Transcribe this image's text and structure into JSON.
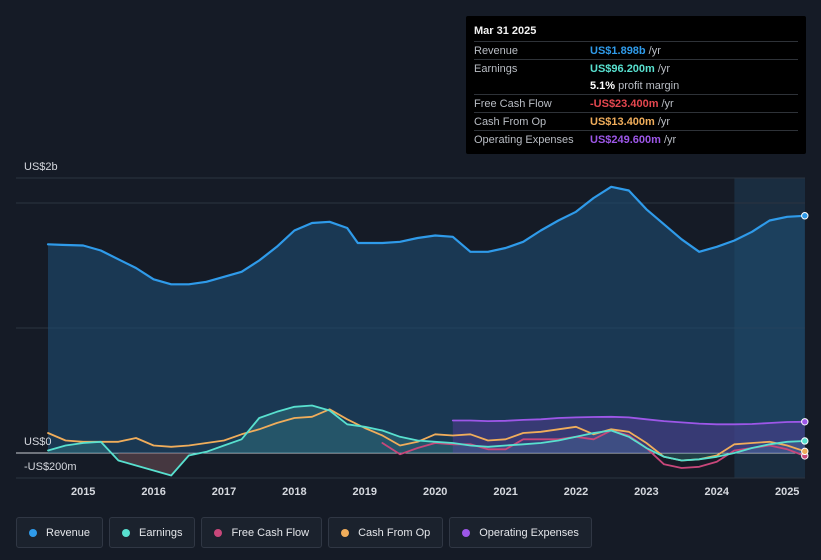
{
  "tooltip": {
    "date": "Mar 31 2025",
    "rows": [
      {
        "label": "Revenue",
        "value": "US$1.898b",
        "unit": "/yr",
        "color": "#2f9bea"
      },
      {
        "label": "Earnings",
        "value": "US$96.200m",
        "unit": "/yr",
        "color": "#58e0cf"
      },
      {
        "label": "",
        "value": "5.1%",
        "unit": "profit margin",
        "color": "#ffffff"
      },
      {
        "label": "Free Cash Flow",
        "value": "-US$23.400m",
        "unit": "/yr",
        "color": "#e5474f"
      },
      {
        "label": "Cash From Op",
        "value": "US$13.400m",
        "unit": "/yr",
        "color": "#f0ad5b"
      },
      {
        "label": "Operating Expenses",
        "value": "US$249.600m",
        "unit": "/yr",
        "color": "#9d57e8"
      }
    ]
  },
  "legend": [
    {
      "label": "Revenue",
      "color": "#2f9bea"
    },
    {
      "label": "Earnings",
      "color": "#58e0cf"
    },
    {
      "label": "Free Cash Flow",
      "color": "#c8477a"
    },
    {
      "label": "Cash From Op",
      "color": "#f0ad5b"
    },
    {
      "label": "Operating Expenses",
      "color": "#9d57e8"
    }
  ],
  "chart_data": {
    "type": "area",
    "title": "",
    "xlabel": "",
    "ylabel": "",
    "y_axis_labels": [
      "US$2b",
      "US$0",
      "-US$200m"
    ],
    "x_ticks": [
      "2015",
      "2016",
      "2017",
      "2018",
      "2019",
      "2020",
      "2021",
      "2022",
      "2023",
      "2024",
      "2025"
    ],
    "xlim": [
      2014.5,
      2025.25
    ],
    "ylim": [
      -200,
      2200
    ],
    "y_gridlines": [
      -200,
      0,
      1000,
      2000
    ],
    "forecast_shading_start": 2024.25,
    "units": "US$ millions",
    "series": [
      {
        "name": "Revenue",
        "color": "#2f9bea",
        "fill": true,
        "points": [
          [
            2014.5,
            1670
          ],
          [
            2014.7,
            1665
          ],
          [
            2015.0,
            1660
          ],
          [
            2015.25,
            1620
          ],
          [
            2015.5,
            1550
          ],
          [
            2015.75,
            1480
          ],
          [
            2016.0,
            1390
          ],
          [
            2016.25,
            1350
          ],
          [
            2016.5,
            1350
          ],
          [
            2016.75,
            1370
          ],
          [
            2017.0,
            1410
          ],
          [
            2017.25,
            1450
          ],
          [
            2017.5,
            1540
          ],
          [
            2017.75,
            1650
          ],
          [
            2018.0,
            1780
          ],
          [
            2018.25,
            1840
          ],
          [
            2018.5,
            1850
          ],
          [
            2018.75,
            1800
          ],
          [
            2018.9,
            1680
          ],
          [
            2019.25,
            1680
          ],
          [
            2019.5,
            1690
          ],
          [
            2019.75,
            1720
          ],
          [
            2020.0,
            1740
          ],
          [
            2020.25,
            1730
          ],
          [
            2020.5,
            1610
          ],
          [
            2020.75,
            1610
          ],
          [
            2021.0,
            1640
          ],
          [
            2021.25,
            1690
          ],
          [
            2021.5,
            1780
          ],
          [
            2021.75,
            1860
          ],
          [
            2022.0,
            1930
          ],
          [
            2022.25,
            2040
          ],
          [
            2022.5,
            2130
          ],
          [
            2022.75,
            2100
          ],
          [
            2023.0,
            1950
          ],
          [
            2023.25,
            1830
          ],
          [
            2023.5,
            1710
          ],
          [
            2023.75,
            1610
          ],
          [
            2024.0,
            1650
          ],
          [
            2024.25,
            1700
          ],
          [
            2024.5,
            1770
          ],
          [
            2024.75,
            1860
          ],
          [
            2025.0,
            1890
          ],
          [
            2025.25,
            1898
          ]
        ]
      },
      {
        "name": "Earnings",
        "color": "#58e0cf",
        "fill": true,
        "points": [
          [
            2014.5,
            20
          ],
          [
            2014.75,
            60
          ],
          [
            2015.0,
            80
          ],
          [
            2015.25,
            90
          ],
          [
            2015.5,
            -60
          ],
          [
            2015.75,
            -100
          ],
          [
            2016.0,
            -140
          ],
          [
            2016.25,
            -180
          ],
          [
            2016.5,
            -20
          ],
          [
            2016.75,
            10
          ],
          [
            2017.0,
            60
          ],
          [
            2017.25,
            110
          ],
          [
            2017.5,
            280
          ],
          [
            2017.75,
            330
          ],
          [
            2018.0,
            370
          ],
          [
            2018.25,
            380
          ],
          [
            2018.5,
            340
          ],
          [
            2018.75,
            230
          ],
          [
            2019.0,
            210
          ],
          [
            2019.25,
            180
          ],
          [
            2019.5,
            130
          ],
          [
            2019.75,
            100
          ],
          [
            2020.0,
            90
          ],
          [
            2020.25,
            80
          ],
          [
            2020.5,
            60
          ],
          [
            2020.75,
            50
          ],
          [
            2021.0,
            60
          ],
          [
            2021.25,
            70
          ],
          [
            2021.5,
            80
          ],
          [
            2021.75,
            100
          ],
          [
            2022.0,
            130
          ],
          [
            2022.25,
            160
          ],
          [
            2022.5,
            180
          ],
          [
            2022.75,
            130
          ],
          [
            2023.0,
            40
          ],
          [
            2023.25,
            -30
          ],
          [
            2023.5,
            -60
          ],
          [
            2023.75,
            -50
          ],
          [
            2024.0,
            -30
          ],
          [
            2024.25,
            0
          ],
          [
            2024.5,
            40
          ],
          [
            2024.75,
            70
          ],
          [
            2025.0,
            90
          ],
          [
            2025.25,
            96.2
          ]
        ]
      },
      {
        "name": "Free Cash Flow",
        "color": "#c8477a",
        "fill": false,
        "points": [
          [
            2019.25,
            80
          ],
          [
            2019.5,
            -10
          ],
          [
            2019.75,
            40
          ],
          [
            2020.0,
            80
          ],
          [
            2020.25,
            70
          ],
          [
            2020.5,
            70
          ],
          [
            2020.75,
            30
          ],
          [
            2021.0,
            30
          ],
          [
            2021.25,
            110
          ],
          [
            2021.5,
            110
          ],
          [
            2021.75,
            110
          ],
          [
            2022.0,
            130
          ],
          [
            2022.25,
            110
          ],
          [
            2022.5,
            180
          ],
          [
            2022.75,
            140
          ],
          [
            2023.0,
            40
          ],
          [
            2023.25,
            -90
          ],
          [
            2023.5,
            -120
          ],
          [
            2023.75,
            -110
          ],
          [
            2024.0,
            -70
          ],
          [
            2024.25,
            20
          ],
          [
            2024.5,
            40
          ],
          [
            2024.75,
            60
          ],
          [
            2025.0,
            30
          ],
          [
            2025.25,
            -23.4
          ]
        ]
      },
      {
        "name": "Cash From Op",
        "color": "#f0ad5b",
        "fill": false,
        "points": [
          [
            2014.5,
            160
          ],
          [
            2014.75,
            100
          ],
          [
            2015.0,
            90
          ],
          [
            2015.25,
            90
          ],
          [
            2015.5,
            90
          ],
          [
            2015.75,
            120
          ],
          [
            2016.0,
            60
          ],
          [
            2016.25,
            50
          ],
          [
            2016.5,
            60
          ],
          [
            2016.75,
            80
          ],
          [
            2017.0,
            100
          ],
          [
            2017.25,
            150
          ],
          [
            2017.5,
            190
          ],
          [
            2017.75,
            240
          ],
          [
            2018.0,
            280
          ],
          [
            2018.25,
            290
          ],
          [
            2018.5,
            350
          ],
          [
            2018.75,
            270
          ],
          [
            2019.0,
            200
          ],
          [
            2019.25,
            140
          ],
          [
            2019.5,
            60
          ],
          [
            2019.75,
            90
          ],
          [
            2020.0,
            150
          ],
          [
            2020.25,
            140
          ],
          [
            2020.5,
            150
          ],
          [
            2020.75,
            100
          ],
          [
            2021.0,
            110
          ],
          [
            2021.25,
            160
          ],
          [
            2021.5,
            170
          ],
          [
            2021.75,
            190
          ],
          [
            2022.0,
            210
          ],
          [
            2022.25,
            150
          ],
          [
            2022.5,
            190
          ],
          [
            2022.75,
            170
          ],
          [
            2023.0,
            80
          ],
          [
            2023.25,
            -30
          ],
          [
            2023.5,
            -60
          ],
          [
            2023.75,
            -50
          ],
          [
            2024.0,
            -20
          ],
          [
            2024.25,
            70
          ],
          [
            2024.5,
            80
          ],
          [
            2024.75,
            90
          ],
          [
            2025.0,
            60
          ],
          [
            2025.25,
            13.4
          ]
        ]
      },
      {
        "name": "Operating Expenses",
        "color": "#9d57e8",
        "fill": true,
        "points": [
          [
            2020.25,
            260
          ],
          [
            2020.5,
            260
          ],
          [
            2020.75,
            255
          ],
          [
            2021.0,
            258
          ],
          [
            2021.25,
            265
          ],
          [
            2021.5,
            270
          ],
          [
            2021.75,
            280
          ],
          [
            2022.0,
            285
          ],
          [
            2022.25,
            288
          ],
          [
            2022.5,
            290
          ],
          [
            2022.75,
            285
          ],
          [
            2023.0,
            270
          ],
          [
            2023.25,
            255
          ],
          [
            2023.5,
            245
          ],
          [
            2023.75,
            235
          ],
          [
            2024.0,
            230
          ],
          [
            2024.25,
            230
          ],
          [
            2024.5,
            232
          ],
          [
            2024.75,
            240
          ],
          [
            2025.0,
            248
          ],
          [
            2025.25,
            249.6
          ]
        ]
      }
    ]
  }
}
